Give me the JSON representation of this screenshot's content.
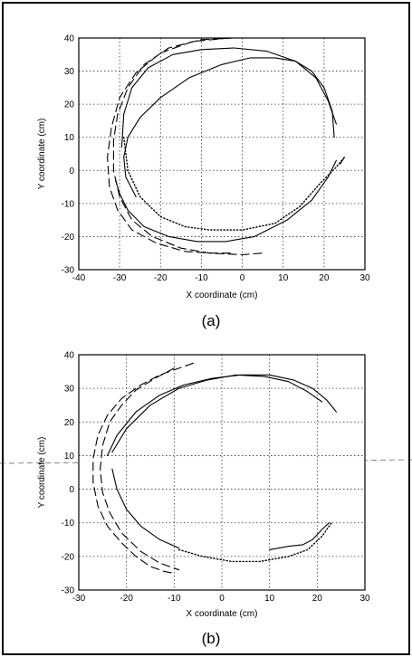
{
  "chart_data": [
    {
      "type": "line",
      "caption": "(a)",
      "xlabel": "X coordinate (cm)",
      "ylabel": "Y coordinate (cm)",
      "xlim": [
        -40,
        30
      ],
      "ylim": [
        -30,
        40
      ],
      "xticks": [
        "-40",
        "-30",
        "-20",
        "-10",
        "0",
        "10",
        "20",
        "30"
      ],
      "yticks": [
        "40",
        "30",
        "20",
        "10",
        "0",
        "-10",
        "-20",
        "-30"
      ],
      "grid": true,
      "series": [
        {
          "style": "solid",
          "x": [
            22.5,
            22,
            20,
            17,
            13,
            8,
            2,
            -5,
            -13,
            -20,
            -25,
            -28,
            -29,
            -28.5,
            -26
          ],
          "y": [
            10,
            18,
            25,
            30,
            33,
            34,
            34,
            32,
            28,
            22,
            16,
            10,
            4,
            -2,
            -8
          ]
        },
        {
          "style": "dotted",
          "x": [
            -29,
            -28,
            -25,
            -20,
            -14,
            -8,
            0,
            8,
            14,
            19,
            23,
            25
          ],
          "y": [
            10,
            0,
            -8,
            -14,
            -17,
            -18,
            -18,
            -16,
            -11,
            -4,
            1,
            4
          ]
        },
        {
          "style": "solid",
          "x": [
            24,
            25
          ],
          "y": [
            2,
            4
          ]
        },
        {
          "style": "solid",
          "x": [
            -31,
            -30,
            -28,
            -24,
            -18,
            -11,
            -4,
            3,
            11,
            17,
            21,
            23
          ],
          "y": [
            -3,
            -7,
            -12,
            -17,
            -20,
            -21.5,
            -21.5,
            -20,
            -15,
            -9,
            -2,
            3
          ]
        },
        {
          "style": "solid",
          "x": [
            -29.5,
            -29,
            -27,
            -23,
            -17,
            -10,
            -2,
            6,
            13,
            18,
            21,
            23
          ],
          "y": [
            7,
            17,
            25,
            31,
            35,
            36.5,
            37,
            36,
            33,
            28,
            21,
            14
          ]
        },
        {
          "style": "dashed",
          "x": [
            -2,
            -10,
            -18,
            -24,
            -28,
            -30.5,
            -31.5,
            -31.5,
            -30,
            -27,
            -22,
            -15,
            -8,
            0,
            5
          ],
          "y": [
            40,
            39.5,
            37,
            32,
            25,
            17,
            9,
            0,
            -8,
            -15,
            -20,
            -23.5,
            -25,
            -25.5,
            -25
          ]
        },
        {
          "style": "dashed",
          "x": [
            -3,
            -12,
            -20,
            -26,
            -30,
            -32,
            -33,
            -32.5,
            -30.5,
            -27,
            -21,
            -14,
            -7,
            -2
          ],
          "y": [
            40,
            39,
            35.5,
            29.5,
            22,
            13,
            4,
            -5,
            -12,
            -18,
            -22,
            -24.5,
            -25,
            -25
          ]
        }
      ]
    },
    {
      "type": "line",
      "caption": "(b)",
      "xlabel": "X coordinate (cm)",
      "ylabel": "Y coordinate (cm)",
      "xlim": [
        -30,
        30
      ],
      "ylim": [
        -30,
        40
      ],
      "xticks": [
        "-30",
        "-20",
        "-10",
        "0",
        "10",
        "20",
        "30"
      ],
      "yticks": [
        "40",
        "30",
        "20",
        "10",
        "0",
        "-10",
        "-20",
        "-30"
      ],
      "grid": true,
      "series": [
        {
          "style": "solid",
          "x": [
            -24,
            -22,
            -18,
            -13,
            -8,
            -2,
            4,
            10,
            15,
            19,
            22,
            24
          ],
          "y": [
            10,
            16,
            23,
            28,
            31,
            33,
            34,
            34,
            32.5,
            30,
            26.5,
            23
          ]
        },
        {
          "style": "solid",
          "x": [
            -23,
            -20,
            -15,
            -9,
            -3,
            3,
            9,
            14,
            18,
            21
          ],
          "y": [
            11,
            18,
            25,
            30,
            32.5,
            34,
            33.5,
            32,
            29,
            26
          ]
        },
        {
          "style": "solid",
          "x": [
            -23,
            -22,
            -20,
            -17,
            -13,
            -9
          ],
          "y": [
            6,
            0,
            -6,
            -11,
            -15,
            -17.5
          ]
        },
        {
          "style": "dotted",
          "x": [
            -9,
            -4,
            2,
            8,
            14,
            18,
            21,
            23
          ],
          "y": [
            -18,
            -20,
            -21.5,
            -21.5,
            -20,
            -18,
            -14,
            -10
          ]
        },
        {
          "style": "solid",
          "x": [
            10,
            14,
            17,
            19,
            21,
            22.5
          ],
          "y": [
            -18,
            -17,
            -16.5,
            -15,
            -12,
            -10
          ]
        },
        {
          "style": "dashed",
          "x": [
            -6,
            -9,
            -13,
            -17,
            -21,
            -24,
            -26,
            -27,
            -27,
            -26,
            -24,
            -21,
            -18,
            -15,
            -12,
            -10
          ],
          "y": [
            37.5,
            36,
            34,
            31,
            27,
            22,
            16,
            9,
            2,
            -5,
            -11,
            -16,
            -20,
            -23,
            -24.5,
            -25
          ]
        },
        {
          "style": "dashed",
          "x": [
            -10,
            -14,
            -18,
            -21,
            -23.5,
            -25,
            -25.5,
            -25,
            -23.5,
            -21,
            -17,
            -13,
            -9
          ],
          "y": [
            36,
            33,
            29.5,
            25,
            20,
            13,
            6,
            -1,
            -7,
            -13,
            -18.5,
            -22,
            -24
          ]
        }
      ]
    }
  ]
}
